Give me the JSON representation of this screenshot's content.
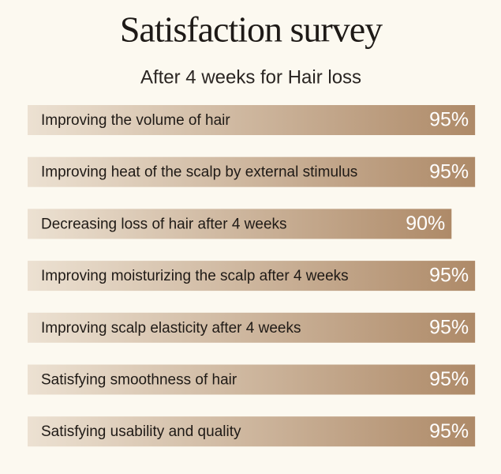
{
  "chart_data": {
    "type": "bar",
    "orientation": "horizontal",
    "title": "Satisfaction survey",
    "subtitle": "After 4 weeks for Hair loss",
    "categories": [
      "Improving the volume of hair",
      "Improving heat of the scalp by external stimulus",
      "Decreasing loss of hair after 4 weeks",
      "Improving moisturizing the scalp after 4 weeks",
      "Improving scalp elasticity after 4 weeks",
      "Satisfying smoothness of hair",
      "Satisfying usability and quality"
    ],
    "values": [
      95,
      95,
      90,
      95,
      95,
      95,
      95
    ],
    "value_labels": [
      "95%",
      "95%",
      "90%",
      "95%",
      "95%",
      "95%",
      "95%"
    ],
    "color": [
      "#ece1d2",
      "#ae8a68"
    ],
    "xlim": [
      0,
      100
    ]
  }
}
